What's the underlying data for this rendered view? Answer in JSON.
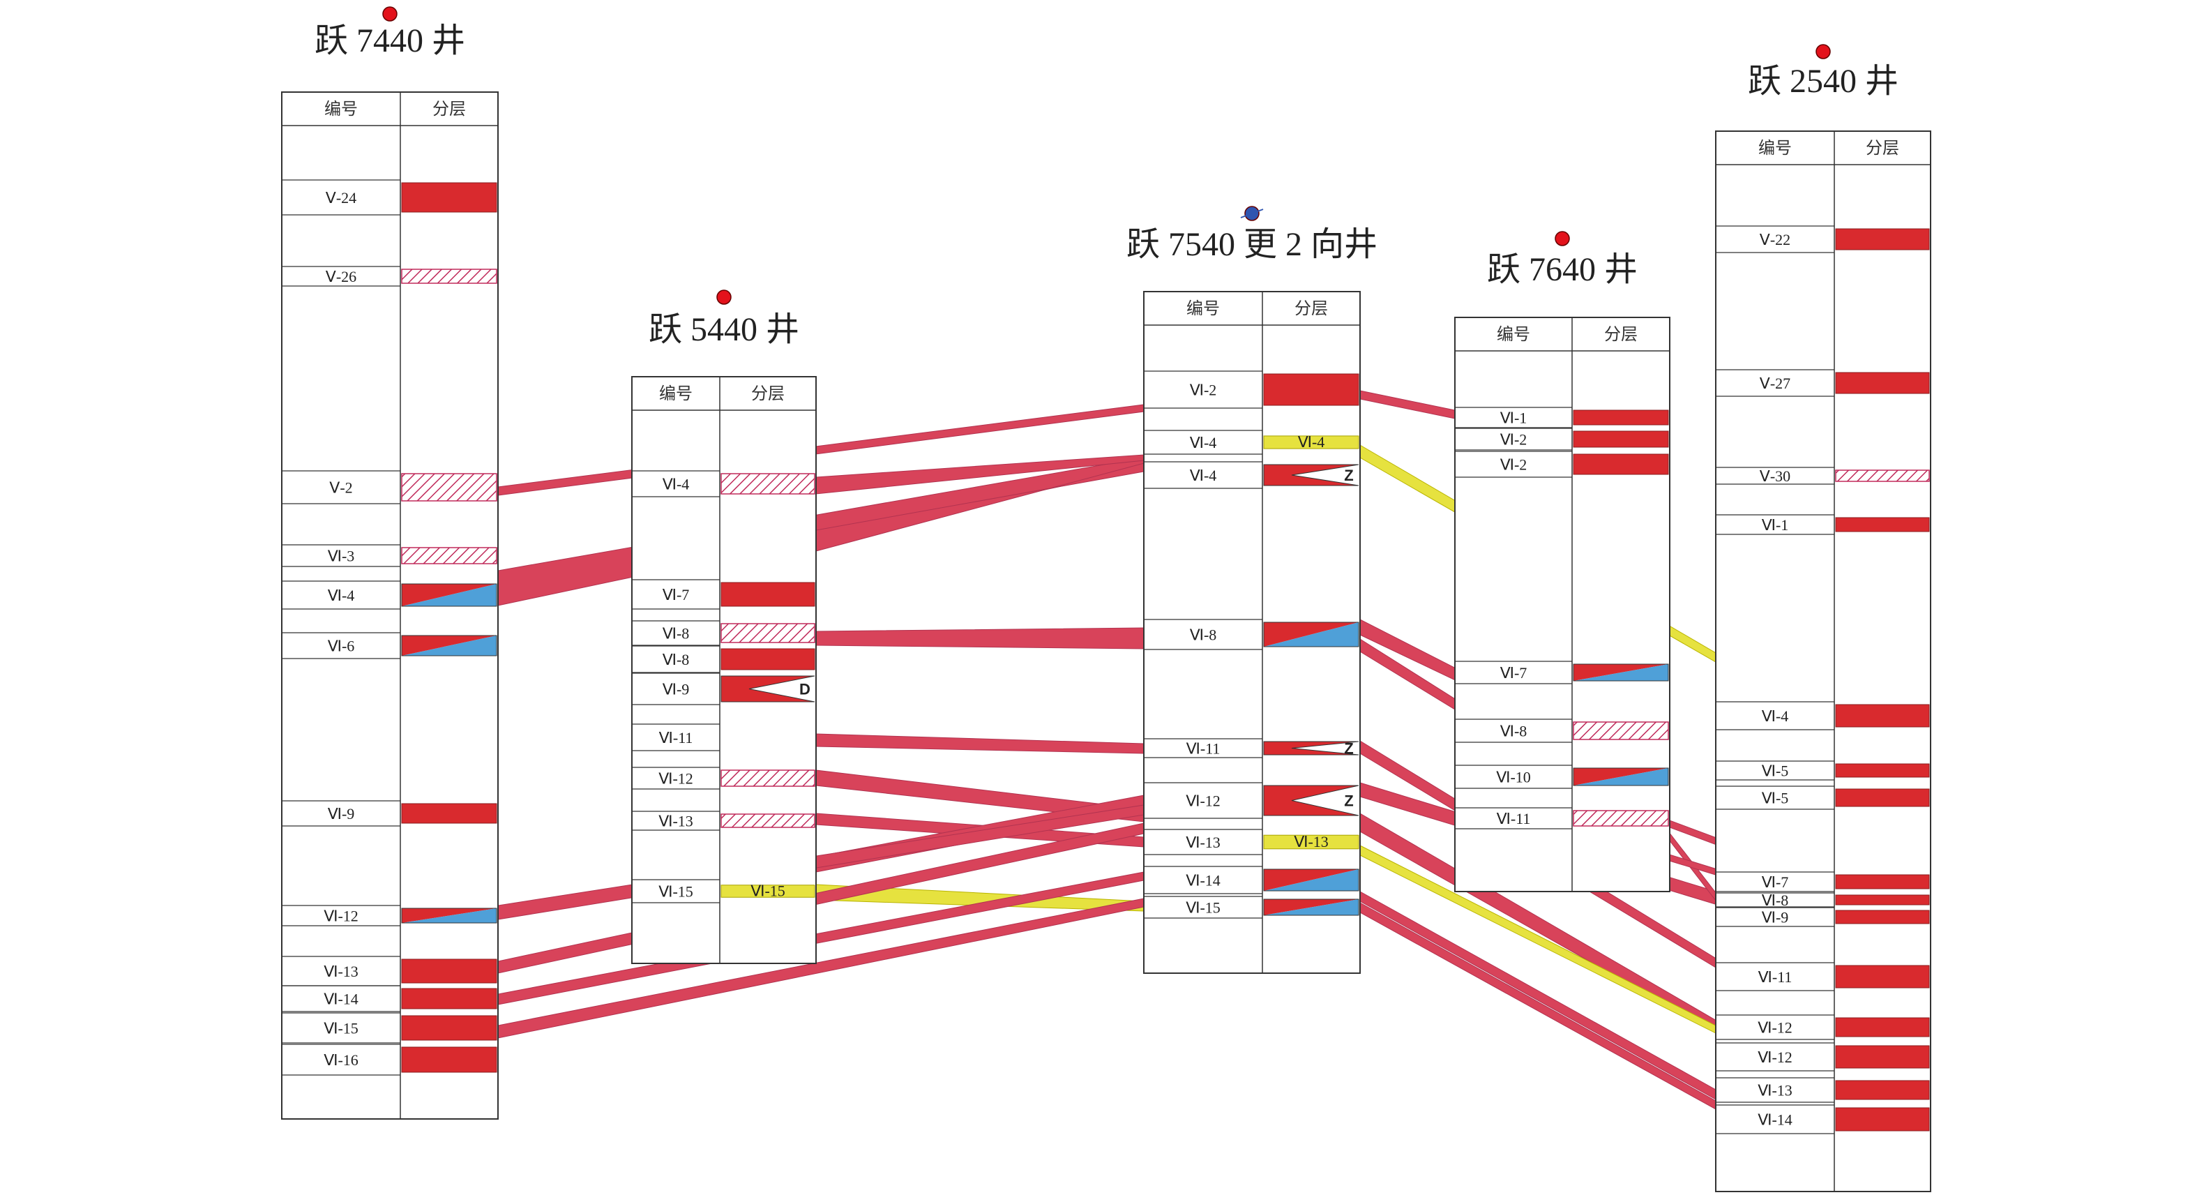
{
  "colors": {
    "red": "#d92a2e",
    "blue": "#4fa0d8",
    "corr_red": "#d8435a",
    "corr_yellow": "#e6e23f",
    "hatch": "#c02a5a",
    "dot_red": "#e3121b",
    "dot_blue": "#2f55b0"
  },
  "headers": {
    "code": "编号",
    "layer": "分层"
  },
  "wells": [
    {
      "id": "w7440",
      "title": "跃 7440 井",
      "marker": "red",
      "rows": [
        {
          "label": "Ⅴ-24",
          "fill": "red"
        },
        {
          "label": "Ⅴ-26",
          "fill": "hatch"
        },
        {
          "label": "Ⅴ-2",
          "fill": "hatch"
        },
        {
          "label": "Ⅵ-3",
          "fill": "hatch"
        },
        {
          "label": "Ⅵ-4",
          "fill": "redblue"
        },
        {
          "label": "Ⅵ-6",
          "fill": "redblue"
        },
        {
          "label": "Ⅵ-9",
          "fill": "red"
        },
        {
          "label": "Ⅵ-12",
          "fill": "redblue"
        },
        {
          "label": "Ⅵ-13",
          "fill": "red"
        },
        {
          "label": "Ⅵ-14",
          "fill": "red"
        },
        {
          "label": "Ⅵ-15",
          "fill": "red"
        },
        {
          "label": "Ⅵ-16",
          "fill": "red"
        }
      ]
    },
    {
      "id": "w5440",
      "title": "跃 5440 井",
      "marker": "red",
      "rows": [
        {
          "label": "Ⅵ-4",
          "fill": "hatch"
        },
        {
          "label": "Ⅵ-7",
          "fill": "red"
        },
        {
          "label": "Ⅵ-8",
          "fill": "hatch"
        },
        {
          "label": "Ⅵ-8",
          "fill": "red"
        },
        {
          "label": "Ⅵ-9",
          "fill": "pinch",
          "mark": "D"
        },
        {
          "label": "Ⅵ-11",
          "fill": "none"
        },
        {
          "label": "Ⅵ-12",
          "fill": "hatch"
        },
        {
          "label": "Ⅵ-13",
          "fill": "hatch"
        },
        {
          "label": "Ⅵ-15",
          "fill": "yellow",
          "inner": "Ⅵ-15"
        }
      ]
    },
    {
      "id": "w7540",
      "title": "跃 7540 更 2 向井",
      "marker": "blue",
      "rows": [
        {
          "label": "Ⅵ-2",
          "fill": "red"
        },
        {
          "label": "Ⅵ-4",
          "fill": "yellow",
          "inner": "Ⅵ-4"
        },
        {
          "label": "Ⅵ-4",
          "fill": "pinch",
          "mark": "Z"
        },
        {
          "label": "Ⅵ-8",
          "fill": "redblue"
        },
        {
          "label": "Ⅵ-11",
          "fill": "pinch",
          "mark": "Z"
        },
        {
          "label": "Ⅵ-12",
          "fill": "pinch",
          "mark": "Z"
        },
        {
          "label": "Ⅵ-13",
          "fill": "yellow",
          "inner": "Ⅵ-13"
        },
        {
          "label": "Ⅵ-14",
          "fill": "redblue"
        },
        {
          "label": "Ⅵ-15",
          "fill": "redblue"
        }
      ]
    },
    {
      "id": "w7640",
      "title": "跃 7640 井",
      "marker": "red",
      "rows": [
        {
          "label": "Ⅵ-1",
          "fill": "red"
        },
        {
          "label": "Ⅵ-2",
          "fill": "red"
        },
        {
          "label": "Ⅵ-2",
          "fill": "red"
        },
        {
          "label": "Ⅵ-7",
          "fill": "redblue"
        },
        {
          "label": "Ⅵ-8",
          "fill": "hatch"
        },
        {
          "label": "Ⅵ-10",
          "fill": "redblue"
        },
        {
          "label": "Ⅵ-11",
          "fill": "hatch"
        }
      ]
    },
    {
      "id": "w2540",
      "title": "跃 2540 井",
      "marker": "red",
      "rows": [
        {
          "label": "Ⅴ-22",
          "fill": "red"
        },
        {
          "label": "Ⅴ-27",
          "fill": "red"
        },
        {
          "label": "Ⅴ-30",
          "fill": "hatch"
        },
        {
          "label": "Ⅵ-1",
          "fill": "red"
        },
        {
          "label": "Ⅵ-4",
          "fill": "red"
        },
        {
          "label": "Ⅵ-5",
          "fill": "red"
        },
        {
          "label": "Ⅵ-5",
          "fill": "red"
        },
        {
          "label": "Ⅵ-7",
          "fill": "red"
        },
        {
          "label": "Ⅵ-8",
          "fill": "red"
        },
        {
          "label": "Ⅵ-9",
          "fill": "red"
        },
        {
          "label": "Ⅵ-11",
          "fill": "red"
        },
        {
          "label": "Ⅵ-12",
          "fill": "red"
        },
        {
          "label": "Ⅵ-12",
          "fill": "red"
        },
        {
          "label": "Ⅵ-13",
          "fill": "red"
        },
        {
          "label": "Ⅵ-14",
          "fill": "red"
        }
      ]
    }
  ]
}
